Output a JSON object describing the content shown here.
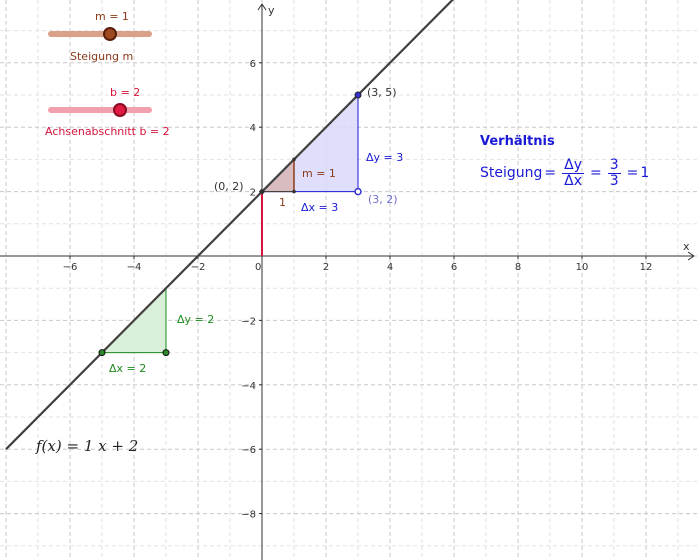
{
  "sliders": {
    "m": {
      "value_label": "m = 1",
      "caption": "Steigung m",
      "value": 1,
      "color": "#8b3a1a",
      "track": "#d9a08a"
    },
    "b": {
      "value_label": "b = 2",
      "caption": "Achsenabschnitt b = 2",
      "value": 2,
      "color": "#d6143c",
      "track": "#f2a0ad"
    }
  },
  "formula": {
    "text": "f(x)  =  1 x + 2"
  },
  "ratio": {
    "title": "Verhältnis",
    "prefix": "Steigung",
    "dy": "Δy",
    "dx": "Δx",
    "num": "3",
    "den": "3",
    "result": "1",
    "color": "#1a1ad6"
  },
  "axes": {
    "x_label": "x",
    "y_label": "y",
    "x_ticks": [
      "−6",
      "−4",
      "−2",
      "0",
      "2",
      "4",
      "6",
      "8",
      "10",
      "12"
    ],
    "x_tick_values": [
      -6,
      -4,
      -2,
      0,
      2,
      4,
      6,
      8,
      10,
      12
    ],
    "y_ticks": [
      "6",
      "4",
      "2",
      "−2",
      "−4",
      "−6",
      "−8"
    ],
    "y_tick_values": [
      6,
      4,
      2,
      -2,
      -4,
      -6,
      -8
    ],
    "xlim": [
      -8,
      13.5
    ],
    "ylim": [
      -9.2,
      7.8
    ]
  },
  "line": {
    "m": 1,
    "b": 2,
    "color": "#404040"
  },
  "points": {
    "p02": {
      "label": "(0, 2)",
      "x": 0,
      "y": 2
    },
    "p35": {
      "label": "(3, 5)",
      "x": 3,
      "y": 5
    },
    "p32": {
      "label": "(3, 2)",
      "x": 3,
      "y": 2
    }
  },
  "triangles": {
    "blue": {
      "dx_label": "Δx = 3",
      "dy_label": "Δy = 3",
      "color": "#1a1ad6",
      "fill": "#d9d9fb"
    },
    "brown": {
      "m_label": "m = 1",
      "one_label": "1",
      "color": "#8b3a1a",
      "fill": "#d7b8b8"
    },
    "green": {
      "dx_label": "Δx = 2",
      "dy_label": "Δy = 2",
      "color": "#1b8a1b",
      "fill": "#d9efd9",
      "x0": -5,
      "y0": -3
    }
  },
  "intercept_color": "#d6143c"
}
